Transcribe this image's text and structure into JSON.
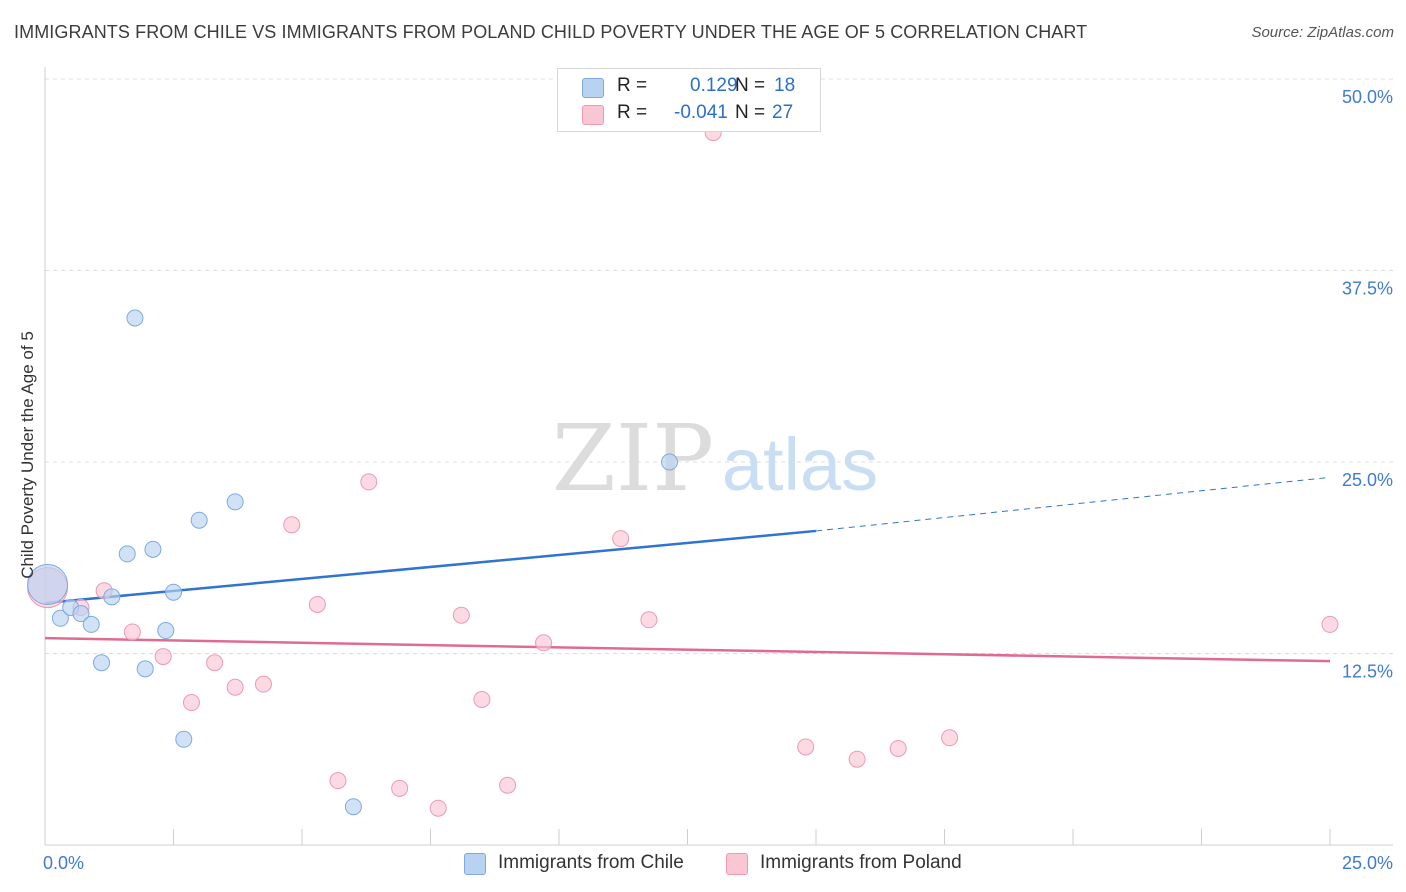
{
  "title": "IMMIGRANTS FROM CHILE VS IMMIGRANTS FROM POLAND CHILD POVERTY UNDER THE AGE OF 5 CORRELATION CHART",
  "source": "Source: ZipAtlas.com",
  "watermark": {
    "zip": "ZIP",
    "atlas": "atlas"
  },
  "legend": {
    "r_label": "R =",
    "n_label": "N =",
    "rows": [
      {
        "r": "0.129",
        "n": "18"
      },
      {
        "r": "-0.041",
        "n": "27"
      }
    ]
  },
  "colors": {
    "chile_fill": "#b8d3f2",
    "chile_stroke": "#7fa9de",
    "chile_line": "#2f74d0",
    "poland_fill": "#f9c6d4",
    "poland_stroke": "#ec9ab3",
    "poland_line": "#e06b92",
    "tick_text": "#3f7bd0",
    "grid": "#dcdcdc"
  },
  "chart_data": {
    "type": "scatter",
    "xlabel": "",
    "ylabel": "Child Poverty Under the Age of 5",
    "xlim": [
      0,
      25
    ],
    "ylim": [
      0,
      50
    ],
    "x_tick_labels": [
      "0.0%",
      "25.0%"
    ],
    "y_ticks": [
      12.5,
      25.0,
      37.5,
      50.0
    ],
    "y_tick_labels": [
      "12.5%",
      "25.0%",
      "37.5%",
      "50.0%"
    ],
    "grid": true,
    "series": [
      {
        "name": "Immigrants from Chile",
        "r": 0.129,
        "n": 18,
        "trend": {
          "x_start": 0,
          "y_start": 15.8,
          "x_solid_end": 15.0,
          "y_solid_end": 20.5,
          "x_end": 25,
          "y_end": 24.0
        },
        "points": [
          {
            "x": 0.05,
            "y": 17.0,
            "size": "large"
          },
          {
            "x": 0.3,
            "y": 14.8
          },
          {
            "x": 0.5,
            "y": 15.5
          },
          {
            "x": 0.7,
            "y": 15.1
          },
          {
            "x": 0.9,
            "y": 14.4
          },
          {
            "x": 1.1,
            "y": 11.9
          },
          {
            "x": 1.3,
            "y": 16.2
          },
          {
            "x": 1.6,
            "y": 19.0
          },
          {
            "x": 1.75,
            "y": 34.4
          },
          {
            "x": 1.95,
            "y": 11.5
          },
          {
            "x": 2.1,
            "y": 19.3
          },
          {
            "x": 2.35,
            "y": 14.0
          },
          {
            "x": 2.5,
            "y": 16.5
          },
          {
            "x": 2.7,
            "y": 6.9
          },
          {
            "x": 3.0,
            "y": 21.2
          },
          {
            "x": 3.7,
            "y": 22.4
          },
          {
            "x": 6.0,
            "y": 2.5
          },
          {
            "x": 12.15,
            "y": 25.0
          }
        ]
      },
      {
        "name": "Immigrants from Poland",
        "r": -0.041,
        "n": 27,
        "trend": {
          "x_start": 0,
          "y_start": 13.5,
          "x_end": 25,
          "y_end": 12.0
        },
        "points": [
          {
            "x": 0.05,
            "y": 16.8,
            "size": "large"
          },
          {
            "x": 0.7,
            "y": 15.5
          },
          {
            "x": 1.15,
            "y": 16.6
          },
          {
            "x": 1.7,
            "y": 13.9
          },
          {
            "x": 2.3,
            "y": 12.3
          },
          {
            "x": 2.85,
            "y": 9.3
          },
          {
            "x": 3.3,
            "y": 11.9
          },
          {
            "x": 3.7,
            "y": 10.3
          },
          {
            "x": 4.25,
            "y": 10.5
          },
          {
            "x": 4.8,
            "y": 20.9
          },
          {
            "x": 5.3,
            "y": 15.7
          },
          {
            "x": 5.7,
            "y": 4.2
          },
          {
            "x": 6.3,
            "y": 23.7
          },
          {
            "x": 6.9,
            "y": 3.7
          },
          {
            "x": 7.65,
            "y": 2.4
          },
          {
            "x": 8.1,
            "y": 15.0
          },
          {
            "x": 8.5,
            "y": 9.5
          },
          {
            "x": 9.0,
            "y": 3.9
          },
          {
            "x": 9.7,
            "y": 13.2
          },
          {
            "x": 11.2,
            "y": 20.0
          },
          {
            "x": 11.75,
            "y": 14.7
          },
          {
            "x": 13.0,
            "y": 46.5
          },
          {
            "x": 14.8,
            "y": 6.4
          },
          {
            "x": 15.8,
            "y": 5.6
          },
          {
            "x": 16.6,
            "y": 6.3
          },
          {
            "x": 17.6,
            "y": 7.0
          },
          {
            "x": 25.0,
            "y": 14.4
          }
        ]
      }
    ]
  }
}
